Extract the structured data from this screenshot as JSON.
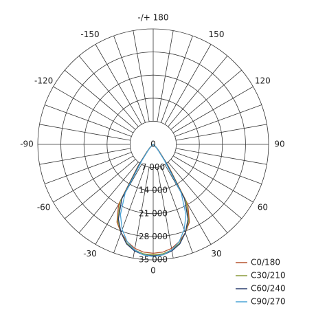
{
  "chart_data": {
    "type": "polar",
    "theta": [
      -45,
      -40,
      -35,
      -30,
      -25,
      -20,
      -15,
      -10,
      -5,
      0,
      5,
      10,
      15,
      20,
      25,
      30,
      35,
      40,
      45
    ],
    "series": [
      {
        "name": "C0/180",
        "color": "#b5532f",
        "values": [
          1500,
          3000,
          8000,
          21000,
          26000,
          28500,
          30500,
          32000,
          32800,
          33000,
          32800,
          32000,
          30500,
          28500,
          26000,
          21000,
          8000,
          3000,
          1500
        ]
      },
      {
        "name": "C30/210",
        "color": "#8a9a3a",
        "values": [
          1400,
          2800,
          7500,
          20000,
          25500,
          28500,
          31000,
          32500,
          33300,
          33500,
          33300,
          32500,
          31000,
          28500,
          25500,
          20000,
          7500,
          2800,
          1400
        ]
      },
      {
        "name": "C60/240",
        "color": "#2a3f6e",
        "values": [
          1300,
          2600,
          7000,
          19000,
          25000,
          28500,
          31200,
          32800,
          33600,
          33800,
          33600,
          32800,
          31200,
          28500,
          25000,
          19000,
          7000,
          2600,
          1300
        ]
      },
      {
        "name": "C90/270",
        "color": "#4aa3d6",
        "values": [
          1200,
          2500,
          6000,
          17000,
          23500,
          27500,
          30500,
          32500,
          33600,
          34000,
          33600,
          32500,
          30500,
          27500,
          23500,
          17000,
          6000,
          2500,
          1200
        ]
      }
    ],
    "rlim": [
      0,
      35000
    ],
    "rticks": [
      0,
      {
        "value": 7000,
        "label": "7 000"
      },
      {
        "value": 14000,
        "label": "14 000"
      },
      {
        "value": 21000,
        "label": "21 000"
      },
      {
        "value": 28000,
        "label": "28 000"
      },
      {
        "value": 35000,
        "label": "35 000"
      }
    ],
    "thetaticks": [
      0,
      30,
      60,
      90,
      120,
      150,
      {
        "value": 180,
        "label": "-/+ 180"
      },
      -150,
      -120,
      -90,
      -60,
      -30
    ],
    "grid": true,
    "legend": "lower right"
  }
}
